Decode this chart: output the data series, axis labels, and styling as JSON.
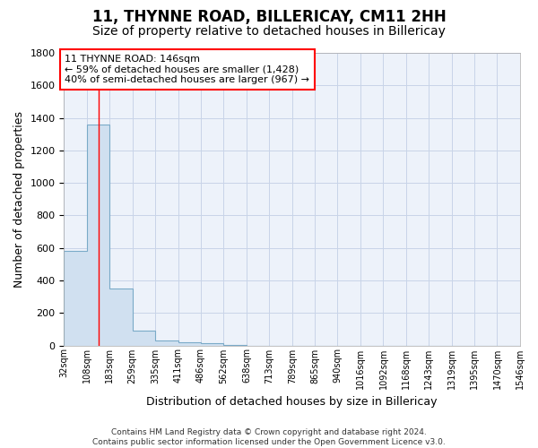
{
  "title": "11, THYNNE ROAD, BILLERICAY, CM11 2HH",
  "subtitle": "Size of property relative to detached houses in Billericay",
  "xlabel": "Distribution of detached houses by size in Billericay",
  "ylabel": "Number of detached properties",
  "bar_values": [
    580,
    1360,
    350,
    90,
    30,
    20,
    15,
    5,
    0,
    0,
    0,
    0,
    0,
    0,
    0,
    0,
    0,
    0,
    0,
    0
  ],
  "bar_edges": [
    32,
    108,
    183,
    259,
    335,
    411,
    486,
    562,
    638,
    713,
    789,
    865,
    940,
    1016,
    1092,
    1168,
    1243,
    1319,
    1395,
    1470,
    1546
  ],
  "tick_labels": [
    "32sqm",
    "108sqm",
    "183sqm",
    "259sqm",
    "335sqm",
    "411sqm",
    "486sqm",
    "562sqm",
    "638sqm",
    "713sqm",
    "789sqm",
    "865sqm",
    "940sqm",
    "1016sqm",
    "1092sqm",
    "1168sqm",
    "1243sqm",
    "1319sqm",
    "1395sqm",
    "1470sqm",
    "1546sqm"
  ],
  "bar_color": "#d0e0f0",
  "bar_edge_color": "#7aaac8",
  "grid_color": "#c8d4e8",
  "bg_color": "#edf2fa",
  "red_line_x": 146,
  "annotation_line1": "11 THYNNE ROAD: 146sqm",
  "annotation_line2": "← 59% of detached houses are smaller (1,428)",
  "annotation_line3": "40% of semi-detached houses are larger (967) →",
  "ylim": [
    0,
    1800
  ],
  "yticks": [
    0,
    200,
    400,
    600,
    800,
    1000,
    1200,
    1400,
    1600,
    1800
  ],
  "footnote": "Contains HM Land Registry data © Crown copyright and database right 2024.\nContains public sector information licensed under the Open Government Licence v3.0.",
  "title_fontsize": 12,
  "subtitle_fontsize": 10,
  "label_fontsize": 9,
  "tick_fontsize": 7,
  "annot_fontsize": 8,
  "footnote_fontsize": 6.5
}
